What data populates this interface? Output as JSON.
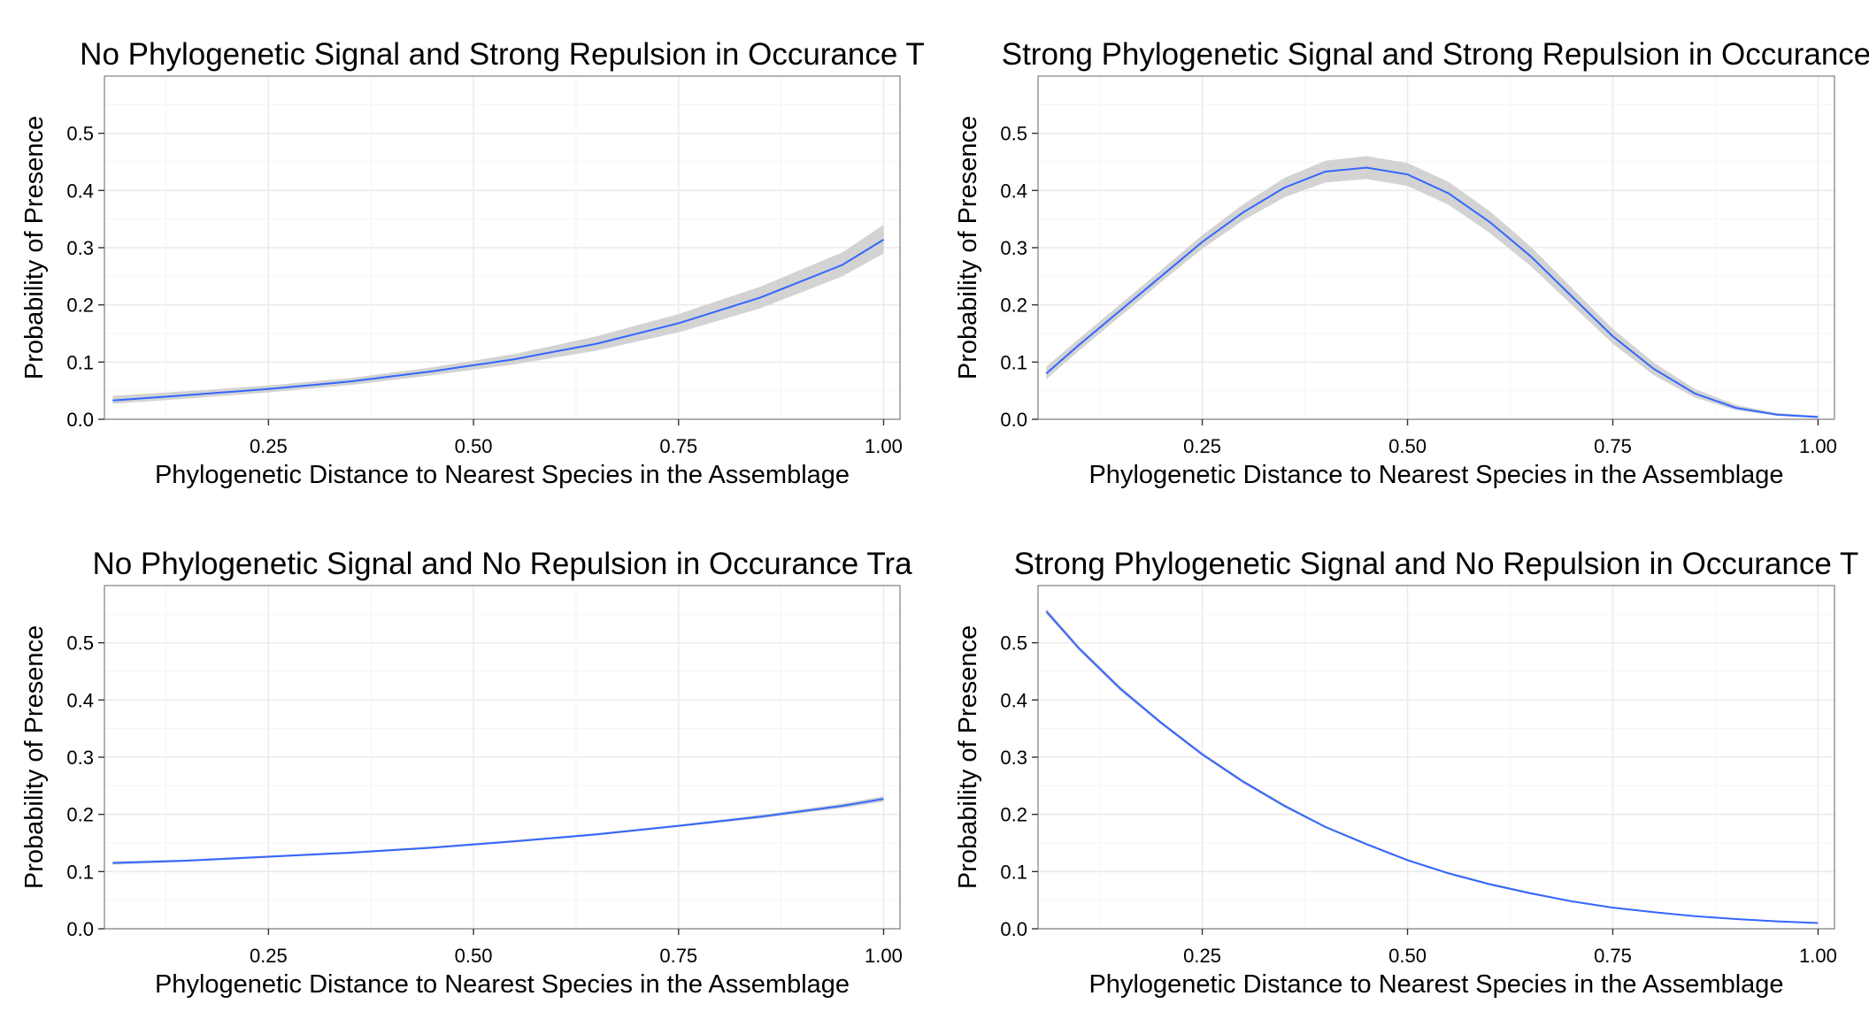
{
  "chart_data": [
    {
      "type": "line",
      "title": "No Phylogenetic Signal and Strong Repulsion in Occurance T",
      "xlabel": "Phylogenetic Distance to Nearest Species in the Assemblage",
      "ylabel": "Probability of Presence",
      "xlim": [
        0.05,
        1.02
      ],
      "ylim": [
        0.0,
        0.6
      ],
      "x_ticks": [
        0.25,
        0.5,
        0.75,
        1.0
      ],
      "x_tick_labels": [
        "0.25",
        "0.50",
        "0.75",
        "1.00"
      ],
      "y_ticks": [
        0.0,
        0.1,
        0.2,
        0.3,
        0.4,
        0.5
      ],
      "y_tick_labels": [
        "0.0",
        "0.1",
        "0.2",
        "0.3",
        "0.4",
        "0.5"
      ],
      "grid": true,
      "series": [
        {
          "x": [
            0.06,
            0.15,
            0.25,
            0.35,
            0.45,
            0.55,
            0.65,
            0.75,
            0.85,
            0.95,
            1.0
          ],
          "y": [
            0.033,
            0.042,
            0.053,
            0.066,
            0.084,
            0.105,
            0.132,
            0.168,
            0.213,
            0.27,
            0.314
          ],
          "lower": [
            0.027,
            0.036,
            0.047,
            0.06,
            0.077,
            0.096,
            0.12,
            0.152,
            0.194,
            0.25,
            0.29
          ],
          "upper": [
            0.041,
            0.049,
            0.059,
            0.072,
            0.091,
            0.114,
            0.145,
            0.184,
            0.232,
            0.292,
            0.34
          ]
        }
      ],
      "line_color": "#3366ff",
      "band_color": "#d3d3d3"
    },
    {
      "type": "line",
      "title": "Strong Phylogenetic Signal and Strong Repulsion in Occurance",
      "xlabel": "Phylogenetic Distance to Nearest Species in the Assemblage",
      "ylabel": "Probability of Presence",
      "xlim": [
        0.05,
        1.02
      ],
      "ylim": [
        0.0,
        0.6
      ],
      "x_ticks": [
        0.25,
        0.5,
        0.75,
        1.0
      ],
      "x_tick_labels": [
        "0.25",
        "0.50",
        "0.75",
        "1.00"
      ],
      "y_ticks": [
        0.0,
        0.1,
        0.2,
        0.3,
        0.4,
        0.5
      ],
      "y_tick_labels": [
        "0.0",
        "0.1",
        "0.2",
        "0.3",
        "0.4",
        "0.5"
      ],
      "grid": true,
      "series": [
        {
          "x": [
            0.06,
            0.1,
            0.15,
            0.2,
            0.25,
            0.3,
            0.35,
            0.4,
            0.45,
            0.5,
            0.55,
            0.6,
            0.65,
            0.7,
            0.75,
            0.8,
            0.85,
            0.9,
            0.95,
            1.0
          ],
          "y": [
            0.08,
            0.13,
            0.19,
            0.25,
            0.31,
            0.362,
            0.405,
            0.433,
            0.44,
            0.428,
            0.395,
            0.345,
            0.285,
            0.215,
            0.145,
            0.088,
            0.045,
            0.02,
            0.008,
            0.004
          ],
          "lower": [
            0.07,
            0.12,
            0.18,
            0.24,
            0.298,
            0.348,
            0.388,
            0.414,
            0.42,
            0.408,
            0.375,
            0.326,
            0.268,
            0.2,
            0.132,
            0.077,
            0.038,
            0.016,
            0.006,
            0.002
          ],
          "upper": [
            0.092,
            0.141,
            0.201,
            0.261,
            0.322,
            0.376,
            0.422,
            0.452,
            0.46,
            0.448,
            0.415,
            0.364,
            0.302,
            0.23,
            0.158,
            0.099,
            0.053,
            0.025,
            0.011,
            0.006
          ]
        }
      ],
      "line_color": "#3366ff",
      "band_color": "#d3d3d3"
    },
    {
      "type": "line",
      "title": "No Phylogenetic Signal and No Repulsion in Occurance Tra",
      "xlabel": "Phylogenetic Distance to Nearest Species in the Assemblage",
      "ylabel": "Probability of Presence",
      "xlim": [
        0.05,
        1.02
      ],
      "ylim": [
        0.0,
        0.6
      ],
      "x_ticks": [
        0.25,
        0.5,
        0.75,
        1.0
      ],
      "x_tick_labels": [
        "0.25",
        "0.50",
        "0.75",
        "1.00"
      ],
      "y_ticks": [
        0.0,
        0.1,
        0.2,
        0.3,
        0.4,
        0.5
      ],
      "y_tick_labels": [
        "0.0",
        "0.1",
        "0.2",
        "0.3",
        "0.4",
        "0.5"
      ],
      "grid": true,
      "series": [
        {
          "x": [
            0.06,
            0.15,
            0.25,
            0.35,
            0.45,
            0.55,
            0.65,
            0.75,
            0.85,
            0.95,
            1.0
          ],
          "y": [
            0.115,
            0.119,
            0.126,
            0.133,
            0.142,
            0.153,
            0.165,
            0.18,
            0.196,
            0.215,
            0.227
          ],
          "lower": [
            0.112,
            0.117,
            0.124,
            0.131,
            0.14,
            0.151,
            0.163,
            0.178,
            0.193,
            0.211,
            0.222
          ],
          "upper": [
            0.118,
            0.121,
            0.128,
            0.135,
            0.144,
            0.155,
            0.167,
            0.182,
            0.199,
            0.219,
            0.232
          ]
        }
      ],
      "line_color": "#3366ff",
      "band_color": "#d3d3d3"
    },
    {
      "type": "line",
      "title": "Strong Phylogenetic Signal and No Repulsion in Occurance T",
      "xlabel": "Phylogenetic Distance to Nearest Species in the Assemblage",
      "ylabel": "Probability of Presence",
      "xlim": [
        0.05,
        1.02
      ],
      "ylim": [
        0.0,
        0.6
      ],
      "x_ticks": [
        0.25,
        0.5,
        0.75,
        1.0
      ],
      "x_tick_labels": [
        "0.25",
        "0.50",
        "0.75",
        "1.00"
      ],
      "y_ticks": [
        0.0,
        0.1,
        0.2,
        0.3,
        0.4,
        0.5
      ],
      "y_tick_labels": [
        "0.0",
        "0.1",
        "0.2",
        "0.3",
        "0.4",
        "0.5"
      ],
      "grid": true,
      "series": [
        {
          "x": [
            0.06,
            0.1,
            0.15,
            0.2,
            0.25,
            0.3,
            0.35,
            0.4,
            0.45,
            0.5,
            0.55,
            0.6,
            0.65,
            0.7,
            0.75,
            0.8,
            0.85,
            0.9,
            0.95,
            1.0
          ],
          "y": [
            0.555,
            0.49,
            0.42,
            0.36,
            0.305,
            0.257,
            0.215,
            0.178,
            0.148,
            0.12,
            0.097,
            0.078,
            0.062,
            0.048,
            0.037,
            0.029,
            0.022,
            0.017,
            0.013,
            0.01
          ],
          "lower": [
            0.55,
            0.486,
            0.416,
            0.357,
            0.302,
            0.254,
            0.212,
            0.176,
            0.146,
            0.118,
            0.095,
            0.076,
            0.06,
            0.047,
            0.036,
            0.028,
            0.021,
            0.016,
            0.012,
            0.009
          ],
          "upper": [
            0.56,
            0.494,
            0.424,
            0.363,
            0.308,
            0.26,
            0.218,
            0.18,
            0.15,
            0.122,
            0.099,
            0.08,
            0.064,
            0.049,
            0.038,
            0.03,
            0.023,
            0.018,
            0.014,
            0.011
          ]
        }
      ],
      "line_color": "#3366ff",
      "band_color": "#d3d3d3"
    }
  ]
}
